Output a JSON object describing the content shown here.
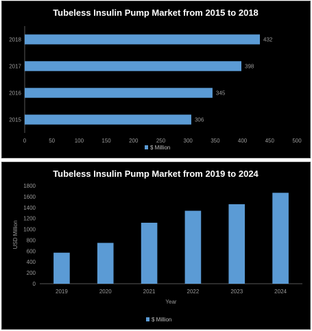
{
  "chart_data": [
    {
      "type": "bar",
      "orientation": "horizontal",
      "title": "Tubeless Insulin Pump Market from 2015 to 2018",
      "categories": [
        "2015",
        "2016",
        "2017",
        "2018"
      ],
      "series": [
        {
          "name": "$ Million",
          "values": [
            306,
            345,
            398,
            432
          ],
          "color": "#5b9bd5"
        }
      ],
      "data_labels": [
        "306",
        "345",
        "398",
        "432"
      ],
      "xlim": [
        0,
        500
      ],
      "x_ticks": [
        0,
        50,
        100,
        150,
        200,
        250,
        300,
        350,
        400,
        450,
        500
      ],
      "xlabel": "",
      "ylabel": "",
      "grid": false,
      "legend_position": "bottom"
    },
    {
      "type": "bar",
      "orientation": "vertical",
      "title": "Tubeless Insulin Pump Market from 2019 to 2024",
      "categories": [
        "2019",
        "2020",
        "2021",
        "2022",
        "2023",
        "2024"
      ],
      "series": [
        {
          "name": "$ Million",
          "values": [
            570,
            750,
            1120,
            1340,
            1460,
            1670
          ],
          "color": "#5b9bd5"
        }
      ],
      "ylim": [
        0,
        1800
      ],
      "y_ticks": [
        0,
        200,
        400,
        600,
        800,
        1000,
        1200,
        1400,
        1600,
        1800
      ],
      "xlabel": "Year",
      "ylabel": "USD Million",
      "grid": false,
      "legend_position": "bottom"
    }
  ],
  "colors": {
    "background": "#000000",
    "bar": "#5b9bd5",
    "text": "#ffffff",
    "tick_text": "#9a9a9a",
    "axis": "#595959"
  }
}
